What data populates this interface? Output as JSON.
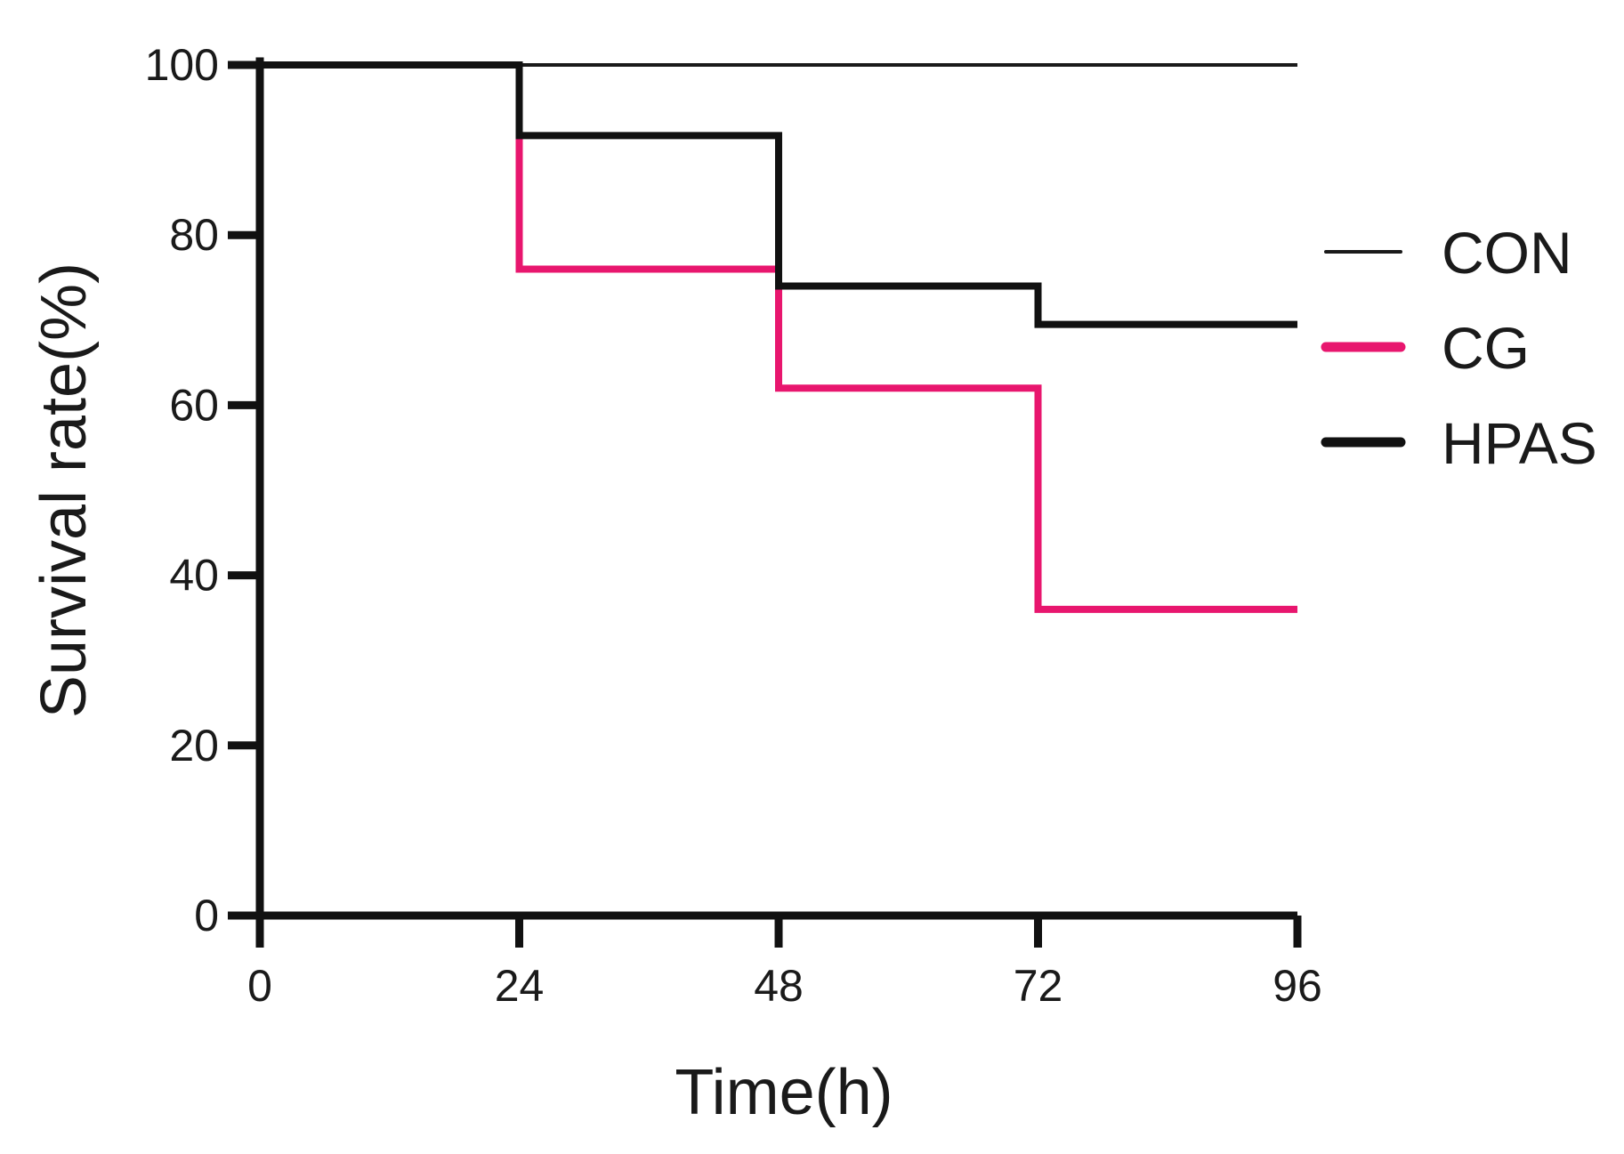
{
  "chart_data": {
    "type": "line",
    "step": true,
    "xlabel": "Time(h)",
    "ylabel": "Survival rate(%)",
    "xlim": [
      0,
      96
    ],
    "ylim": [
      0,
      100
    ],
    "xticks": [
      0,
      24,
      48,
      72,
      96
    ],
    "yticks": [
      0,
      20,
      40,
      60,
      80,
      100
    ],
    "grid": false,
    "legend_position": "right",
    "series": [
      {
        "name": "CON",
        "color": "#1a1a1a",
        "weight": "thin",
        "x": [
          0,
          24,
          48,
          72,
          96
        ],
        "y": [
          100,
          100,
          100,
          100,
          100
        ]
      },
      {
        "name": "CG",
        "color": "#e8166e",
        "weight": "thick",
        "x": [
          0,
          24,
          48,
          72,
          96
        ],
        "y": [
          100,
          76,
          62,
          36,
          36
        ]
      },
      {
        "name": "HPAS",
        "color": "#111111",
        "weight": "thick",
        "x": [
          0,
          24,
          48,
          72,
          96
        ],
        "y": [
          100,
          91.7,
          74,
          69.5,
          69.5
        ]
      }
    ]
  }
}
